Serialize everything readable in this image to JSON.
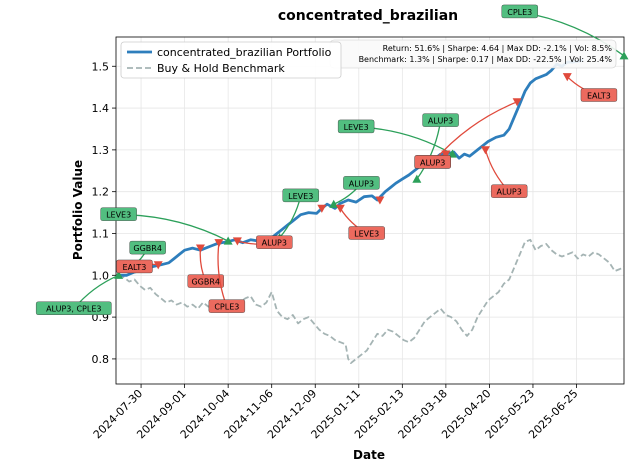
{
  "chart_data": {
    "type": "line",
    "title": "concentrated_brazilian",
    "xlabel": "Date",
    "ylabel": "Portfolio Value",
    "xlim": [
      0,
      385
    ],
    "ylim": [
      0.74,
      1.57
    ],
    "grid": true,
    "legend_position": "top-left",
    "x_ticks": [
      {
        "day": 19,
        "label": "2024-07-30"
      },
      {
        "day": 52,
        "label": "2024-09-01"
      },
      {
        "day": 85,
        "label": "2024-10-04"
      },
      {
        "day": 118,
        "label": "2024-11-06"
      },
      {
        "day": 151,
        "label": "2024-12-09"
      },
      {
        "day": 184,
        "label": "2025-01-11"
      },
      {
        "day": 217,
        "label": "2025-02-13"
      },
      {
        "day": 250,
        "label": "2025-03-18"
      },
      {
        "day": 283,
        "label": "2025-04-20"
      },
      {
        "day": 316,
        "label": "2025-05-23"
      },
      {
        "day": 349,
        "label": "2025-06-25"
      }
    ],
    "y_ticks": [
      0.8,
      0.9,
      1.0,
      1.1,
      1.2,
      1.3,
      1.4,
      1.5
    ],
    "series": [
      {
        "name": "concentrated_brazilian Portfolio",
        "color": "#2e7ebc",
        "style": "solid",
        "points": [
          [
            2,
            1.0
          ],
          [
            8,
            1.0
          ],
          [
            14,
            1.008
          ],
          [
            20,
            1.012
          ],
          [
            27,
            1.02
          ],
          [
            34,
            1.025
          ],
          [
            40,
            1.03
          ],
          [
            44,
            1.04
          ],
          [
            48,
            1.05
          ],
          [
            52,
            1.06
          ],
          [
            58,
            1.065
          ],
          [
            64,
            1.06
          ],
          [
            68,
            1.065
          ],
          [
            72,
            1.07
          ],
          [
            76,
            1.075
          ],
          [
            80,
            1.078
          ],
          [
            84,
            1.08
          ],
          [
            90,
            1.085
          ],
          [
            96,
            1.078
          ],
          [
            102,
            1.085
          ],
          [
            108,
            1.082
          ],
          [
            114,
            1.078
          ],
          [
            118,
            1.09
          ],
          [
            122,
            1.1
          ],
          [
            126,
            1.11
          ],
          [
            130,
            1.12
          ],
          [
            134,
            1.13
          ],
          [
            140,
            1.145
          ],
          [
            146,
            1.15
          ],
          [
            152,
            1.148
          ],
          [
            156,
            1.16
          ],
          [
            160,
            1.17
          ],
          [
            166,
            1.16
          ],
          [
            170,
            1.172
          ],
          [
            176,
            1.18
          ],
          [
            182,
            1.175
          ],
          [
            188,
            1.188
          ],
          [
            194,
            1.19
          ],
          [
            198,
            1.18
          ],
          [
            204,
            1.2
          ],
          [
            208,
            1.21
          ],
          [
            212,
            1.22
          ],
          [
            217,
            1.23
          ],
          [
            222,
            1.24
          ],
          [
            226,
            1.25
          ],
          [
            230,
            1.26
          ],
          [
            234,
            1.27
          ],
          [
            238,
            1.275
          ],
          [
            242,
            1.28
          ],
          [
            246,
            1.29
          ],
          [
            250,
            1.29
          ],
          [
            256,
            1.295
          ],
          [
            260,
            1.28
          ],
          [
            264,
            1.29
          ],
          [
            268,
            1.285
          ],
          [
            274,
            1.3
          ],
          [
            278,
            1.31
          ],
          [
            282,
            1.32
          ],
          [
            288,
            1.33
          ],
          [
            294,
            1.335
          ],
          [
            298,
            1.35
          ],
          [
            302,
            1.38
          ],
          [
            306,
            1.41
          ],
          [
            310,
            1.44
          ],
          [
            314,
            1.46
          ],
          [
            318,
            1.47
          ],
          [
            322,
            1.475
          ],
          [
            326,
            1.48
          ],
          [
            330,
            1.49
          ],
          [
            334,
            1.505
          ],
          [
            338,
            1.5
          ],
          [
            342,
            1.51
          ],
          [
            346,
            1.51
          ],
          [
            350,
            1.512
          ],
          [
            354,
            1.515
          ]
        ]
      },
      {
        "name": "Buy & Hold Benchmark",
        "color": "#a5b4b4",
        "style": "dashed",
        "points": [
          [
            2,
            1.0
          ],
          [
            6,
            0.995
          ],
          [
            10,
            0.985
          ],
          [
            14,
            0.99
          ],
          [
            18,
            0.975
          ],
          [
            22,
            0.965
          ],
          [
            26,
            0.97
          ],
          [
            30,
            0.955
          ],
          [
            34,
            0.945
          ],
          [
            38,
            0.935
          ],
          [
            42,
            0.94
          ],
          [
            46,
            0.93
          ],
          [
            50,
            0.935
          ],
          [
            54,
            0.925
          ],
          [
            58,
            0.93
          ],
          [
            62,
            0.92
          ],
          [
            66,
            0.935
          ],
          [
            70,
            0.925
          ],
          [
            74,
            0.935
          ],
          [
            78,
            0.93
          ],
          [
            82,
            0.935
          ],
          [
            86,
            0.93
          ],
          [
            90,
            0.94
          ],
          [
            94,
            0.935
          ],
          [
            98,
            0.945
          ],
          [
            102,
            0.95
          ],
          [
            106,
            0.93
          ],
          [
            110,
            0.925
          ],
          [
            114,
            0.935
          ],
          [
            118,
            0.96
          ],
          [
            122,
            0.915
          ],
          [
            126,
            0.9
          ],
          [
            130,
            0.895
          ],
          [
            134,
            0.905
          ],
          [
            138,
            0.885
          ],
          [
            142,
            0.895
          ],
          [
            146,
            0.9
          ],
          [
            150,
            0.885
          ],
          [
            154,
            0.87
          ],
          [
            158,
            0.86
          ],
          [
            162,
            0.855
          ],
          [
            166,
            0.845
          ],
          [
            170,
            0.84
          ],
          [
            174,
            0.835
          ],
          [
            176,
            0.8
          ],
          [
            178,
            0.79
          ],
          [
            182,
            0.8
          ],
          [
            186,
            0.81
          ],
          [
            190,
            0.82
          ],
          [
            194,
            0.84
          ],
          [
            198,
            0.86
          ],
          [
            202,
            0.855
          ],
          [
            206,
            0.87
          ],
          [
            210,
            0.865
          ],
          [
            214,
            0.855
          ],
          [
            218,
            0.845
          ],
          [
            222,
            0.84
          ],
          [
            226,
            0.85
          ],
          [
            230,
            0.87
          ],
          [
            234,
            0.89
          ],
          [
            238,
            0.9
          ],
          [
            242,
            0.91
          ],
          [
            246,
            0.92
          ],
          [
            250,
            0.905
          ],
          [
            254,
            0.9
          ],
          [
            258,
            0.89
          ],
          [
            262,
            0.87
          ],
          [
            266,
            0.855
          ],
          [
            270,
            0.87
          ],
          [
            274,
            0.9
          ],
          [
            278,
            0.92
          ],
          [
            282,
            0.94
          ],
          [
            286,
            0.95
          ],
          [
            290,
            0.96
          ],
          [
            294,
            0.98
          ],
          [
            298,
            0.99
          ],
          [
            302,
            1.02
          ],
          [
            306,
            1.05
          ],
          [
            310,
            1.08
          ],
          [
            314,
            1.085
          ],
          [
            318,
            1.06
          ],
          [
            322,
            1.07
          ],
          [
            326,
            1.075
          ],
          [
            330,
            1.06
          ],
          [
            334,
            1.05
          ],
          [
            338,
            1.045
          ],
          [
            342,
            1.05
          ],
          [
            346,
            1.055
          ],
          [
            350,
            1.04
          ],
          [
            354,
            1.05
          ],
          [
            358,
            1.045
          ],
          [
            362,
            1.055
          ],
          [
            366,
            1.05
          ],
          [
            370,
            1.04
          ],
          [
            374,
            1.03
          ],
          [
            378,
            1.01
          ],
          [
            382,
            1.015
          ],
          [
            385,
            1.02
          ]
        ]
      }
    ],
    "stats": {
      "portfolio": "Return: 51.6% | Sharpe: 4.64 | Max DD: -2.1% | Vol: 8.5%",
      "benchmark": "Benchmark: 1.3% | Sharpe: 0.17 | Max DD: -22.5% | Vol: 25.4%"
    },
    "trades": [
      {
        "kind": "buy",
        "day": 2,
        "value": 1.0,
        "label": "ALUP3, CPLE3",
        "lx": -32,
        "ly": 0.92
      },
      {
        "kind": "buy",
        "day": 12,
        "value": 1.02,
        "label": "GGBR4",
        "lx": 24,
        "ly": 1.065
      },
      {
        "kind": "buy",
        "day": 85,
        "value": 1.082,
        "label": "LEVE3",
        "lx": 2,
        "ly": 1.145
      },
      {
        "kind": "buy",
        "day": 124,
        "value": 1.09,
        "label": "LEVE3",
        "lx": 140,
        "ly": 1.19
      },
      {
        "kind": "buy",
        "day": 165,
        "value": 1.17,
        "label": "ALUP3",
        "lx": 186,
        "ly": 1.22
      },
      {
        "kind": "buy",
        "day": 228,
        "value": 1.23,
        "label": "ALUP3",
        "lx": 246,
        "ly": 1.37
      },
      {
        "kind": "buy",
        "day": 255,
        "value": 1.29,
        "label": "LEVE3",
        "lx": 182,
        "ly": 1.355
      },
      {
        "kind": "buy",
        "day": 385,
        "value": 1.525,
        "label": "CPLE3",
        "lx": 306,
        "ly": 1.63
      },
      {
        "kind": "sell",
        "day": 32,
        "value": 1.025,
        "label": "EALT3",
        "lx": 14,
        "ly": 1.02
      },
      {
        "kind": "sell",
        "day": 64,
        "value": 1.065,
        "label": "GGBR4",
        "lx": 68,
        "ly": 0.985
      },
      {
        "kind": "sell",
        "day": 78,
        "value": 1.078,
        "label": "CPLE3",
        "lx": 84,
        "ly": 0.925
      },
      {
        "kind": "sell",
        "day": 92,
        "value": 1.082,
        "label": "ALUP3",
        "lx": 120,
        "ly": 1.078
      },
      {
        "kind": "sell",
        "day": 170,
        "value": 1.16,
        "label": "LEVE3",
        "lx": 190,
        "ly": 1.1
      },
      {
        "kind": "sell",
        "day": 250,
        "value": 1.29,
        "label": "ALUP3",
        "lx": 240,
        "ly": 1.27
      },
      {
        "kind": "sell",
        "day": 280,
        "value": 1.3,
        "label": "ALUP3",
        "lx": 298,
        "ly": 1.2
      },
      {
        "kind": "sell",
        "day": 304,
        "value": 1.415,
        "label": "ALUP3",
        "lx": 240,
        "ly": 1.27
      },
      {
        "kind": "sell",
        "day": 342,
        "value": 1.475,
        "label": "EALT3",
        "lx": 366,
        "ly": 1.43
      },
      {
        "kind": "sell",
        "day": 156,
        "value": 1.16,
        "label": "",
        "lx": 0,
        "ly": 0
      },
      {
        "kind": "sell",
        "day": 200,
        "value": 1.18,
        "label": "",
        "lx": 0,
        "ly": 0
      }
    ]
  }
}
